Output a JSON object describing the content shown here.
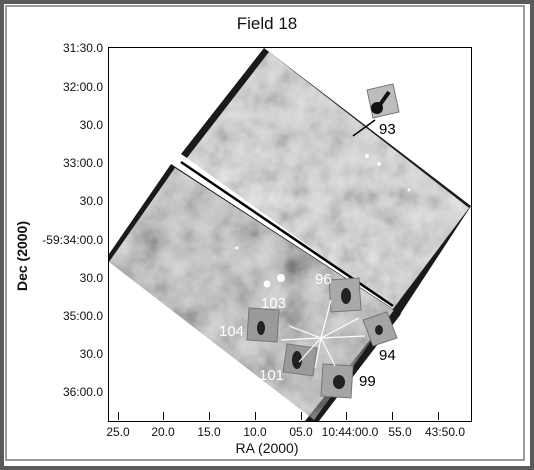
{
  "figure": {
    "title": "Field 18",
    "xlabel": "RA (2000)",
    "ylabel": "Dec (2000)",
    "y_ticks": [
      "31:30.0",
      "32:00.0",
      "30.0",
      "33:00.0",
      "30.0",
      "-59:34:00.0",
      "30.0",
      "35:00.0",
      "30.0",
      "36:00.0"
    ],
    "x_ticks": [
      "25.0",
      "20.0",
      "15.0",
      "10.0",
      "05.0",
      "10:44:00.0",
      "55.0",
      "43:50.0"
    ],
    "source_labels": [
      "93",
      "96",
      "103",
      "104",
      "94",
      "101",
      "99"
    ],
    "colors": {
      "frame": "#5a5a5a",
      "background": "#ffffff",
      "text": "#111111"
    }
  }
}
